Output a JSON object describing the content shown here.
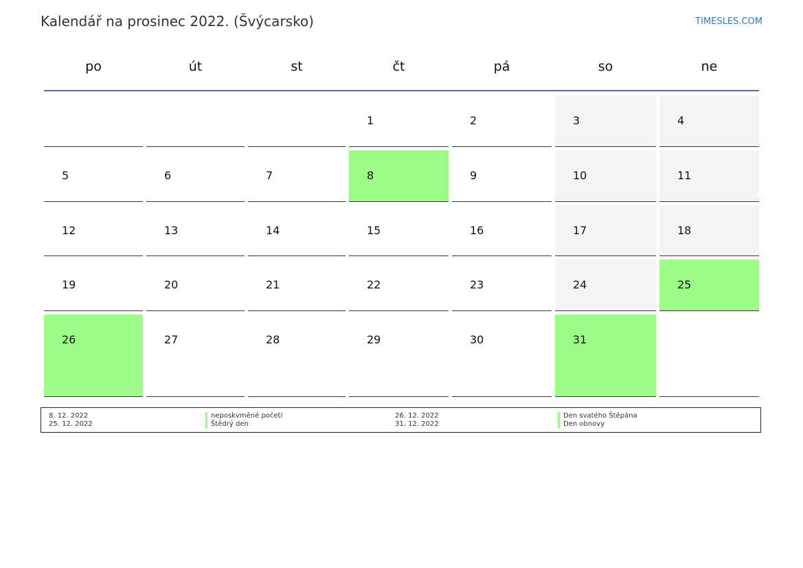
{
  "header": {
    "title": "Kalendář na prosinec 2022. (Švýcarsko)",
    "brand": "TIMESLES.COM"
  },
  "colors": {
    "holiday": "#9cfc88",
    "weekend": "#f4f4f4",
    "header_line": "#4f6f9a"
  },
  "weekdays": [
    "po",
    "út",
    "st",
    "čt",
    "pá",
    "so",
    "ne"
  ],
  "weeks": [
    [
      null,
      null,
      null,
      {
        "day": "1"
      },
      {
        "day": "2"
      },
      {
        "day": "3"
      },
      {
        "day": "4"
      }
    ],
    [
      {
        "day": "5"
      },
      {
        "day": "6"
      },
      {
        "day": "7"
      },
      {
        "day": "8",
        "holiday": true
      },
      {
        "day": "9"
      },
      {
        "day": "10"
      },
      {
        "day": "11"
      }
    ],
    [
      {
        "day": "12"
      },
      {
        "day": "13"
      },
      {
        "day": "14"
      },
      {
        "day": "15"
      },
      {
        "day": "16"
      },
      {
        "day": "17"
      },
      {
        "day": "18"
      }
    ],
    [
      {
        "day": "19"
      },
      {
        "day": "20"
      },
      {
        "day": "21"
      },
      {
        "day": "22"
      },
      {
        "day": "23"
      },
      {
        "day": "24"
      },
      {
        "day": "25",
        "holiday": true
      }
    ],
    [
      {
        "day": "26",
        "holiday": true
      },
      {
        "day": "27"
      },
      {
        "day": "28"
      },
      {
        "day": "29"
      },
      {
        "day": "30"
      },
      {
        "day": "31",
        "holiday": true
      },
      null
    ]
  ],
  "holidays": [
    {
      "date": "8. 12. 2022",
      "name": "neposkvměné početí"
    },
    {
      "date": "25. 12. 2022",
      "name": "Štědrý den"
    },
    {
      "date": "26. 12. 2022",
      "name": "Den svatého Štěpána"
    },
    {
      "date": "31. 12. 2022",
      "name": "Den obnovy"
    }
  ]
}
